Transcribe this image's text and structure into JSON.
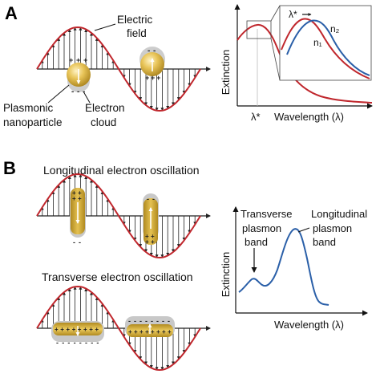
{
  "panel_a": {
    "letter": "A",
    "label_field": [
      "Electric",
      "field"
    ],
    "label_particle": [
      "Plasmonic",
      "nanoparticle"
    ],
    "label_cloud": [
      "Electron",
      "cloud"
    ],
    "spectrum": {
      "ylabel": "Extinction",
      "xlabel": "Wavelength (λ)",
      "marker": "λ*",
      "inset_marker": "λ*",
      "series": [
        {
          "name": "n₂",
          "color": "#c0272d"
        },
        {
          "name": "n₁",
          "color": "#2a5fa8"
        }
      ]
    }
  },
  "panel_b": {
    "letter": "B",
    "title_long": "Longitudinal electron oscillation",
    "title_trans": "Transverse electron oscillation",
    "spectrum": {
      "ylabel": "Extinction",
      "xlabel": "Wavelength (λ)",
      "band_trans": [
        "Transverse",
        "plasmon",
        "band"
      ],
      "band_long": [
        "Longitudinal",
        "plasmon",
        "band"
      ],
      "color": "#2a5fa8"
    }
  },
  "colors": {
    "wave": "#c0272d",
    "arrow": "#222222",
    "gold": "#c9a227",
    "cloud": "#c8c8c8",
    "spectrum_red": "#c0272d",
    "spectrum_blue": "#2a5fa8"
  },
  "signs": {
    "plus": "+",
    "minus": "-"
  }
}
